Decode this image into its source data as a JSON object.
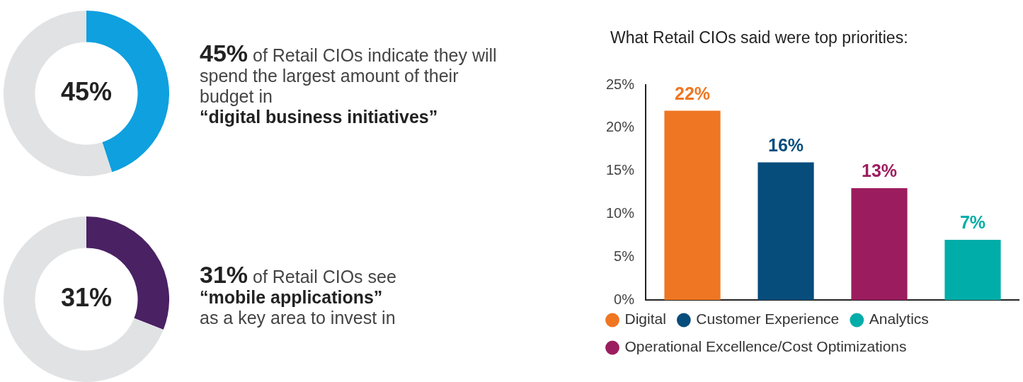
{
  "chart_data": [
    {
      "type": "donut",
      "categories": [
        null,
        null
      ],
      "values": [
        45,
        55
      ],
      "colors": [
        "#0fa0df",
        "#e1e2e4"
      ],
      "value_labels": [
        "45%",
        null
      ],
      "legend": false,
      "annotations": [
        "45%",
        "of Retail CIOs indicate they will spend the largest amount of their budget in",
        "“digital business initiatives”"
      ]
    },
    {
      "type": "donut",
      "categories": [
        null,
        null
      ],
      "values": [
        31,
        69
      ],
      "colors": [
        "#4a2163",
        "#e1e2e4"
      ],
      "value_labels": [
        "31%",
        null
      ],
      "legend": false,
      "annotations": [
        "31%",
        "of Retail CIOs see",
        "“mobile applications”",
        "as a key area to invest in"
      ]
    },
    {
      "type": "bar",
      "title": "What Retail CIOs said were top priorities:",
      "categories": [
        null,
        null,
        null,
        null
      ],
      "series": [
        {
          "name": "Digital",
          "color": "#ef7622",
          "values": [
            22,
            null,
            null,
            null
          ],
          "value_labels": [
            "22%",
            null,
            null,
            null
          ]
        },
        {
          "name": "Customer Experience",
          "color": "#064d7c",
          "values": [
            null,
            16,
            null,
            null
          ],
          "value_labels": [
            null,
            "16%",
            null,
            null
          ]
        },
        {
          "name": "Analytics",
          "color": "#00ada8",
          "values": [
            null,
            null,
            null,
            7
          ],
          "value_labels": [
            null,
            null,
            null,
            "7%"
          ]
        },
        {
          "name": "Operational Excellence/Cost Optimizations",
          "color": "#9c1d5f",
          "values": [
            null,
            null,
            13,
            null
          ],
          "value_labels": [
            null,
            null,
            "13%",
            null
          ]
        }
      ],
      "ylim": [
        0,
        25
      ],
      "yticks": [
        {
          "value": 0,
          "label": "0%"
        },
        {
          "value": 5,
          "label": "5%"
        },
        {
          "value": 10,
          "label": "10%"
        },
        {
          "value": 15,
          "label": "15%"
        },
        {
          "value": 20,
          "label": "20%"
        },
        {
          "value": 25,
          "label": "25%"
        }
      ],
      "tick_labels": "y",
      "legend": "bottom"
    }
  ]
}
